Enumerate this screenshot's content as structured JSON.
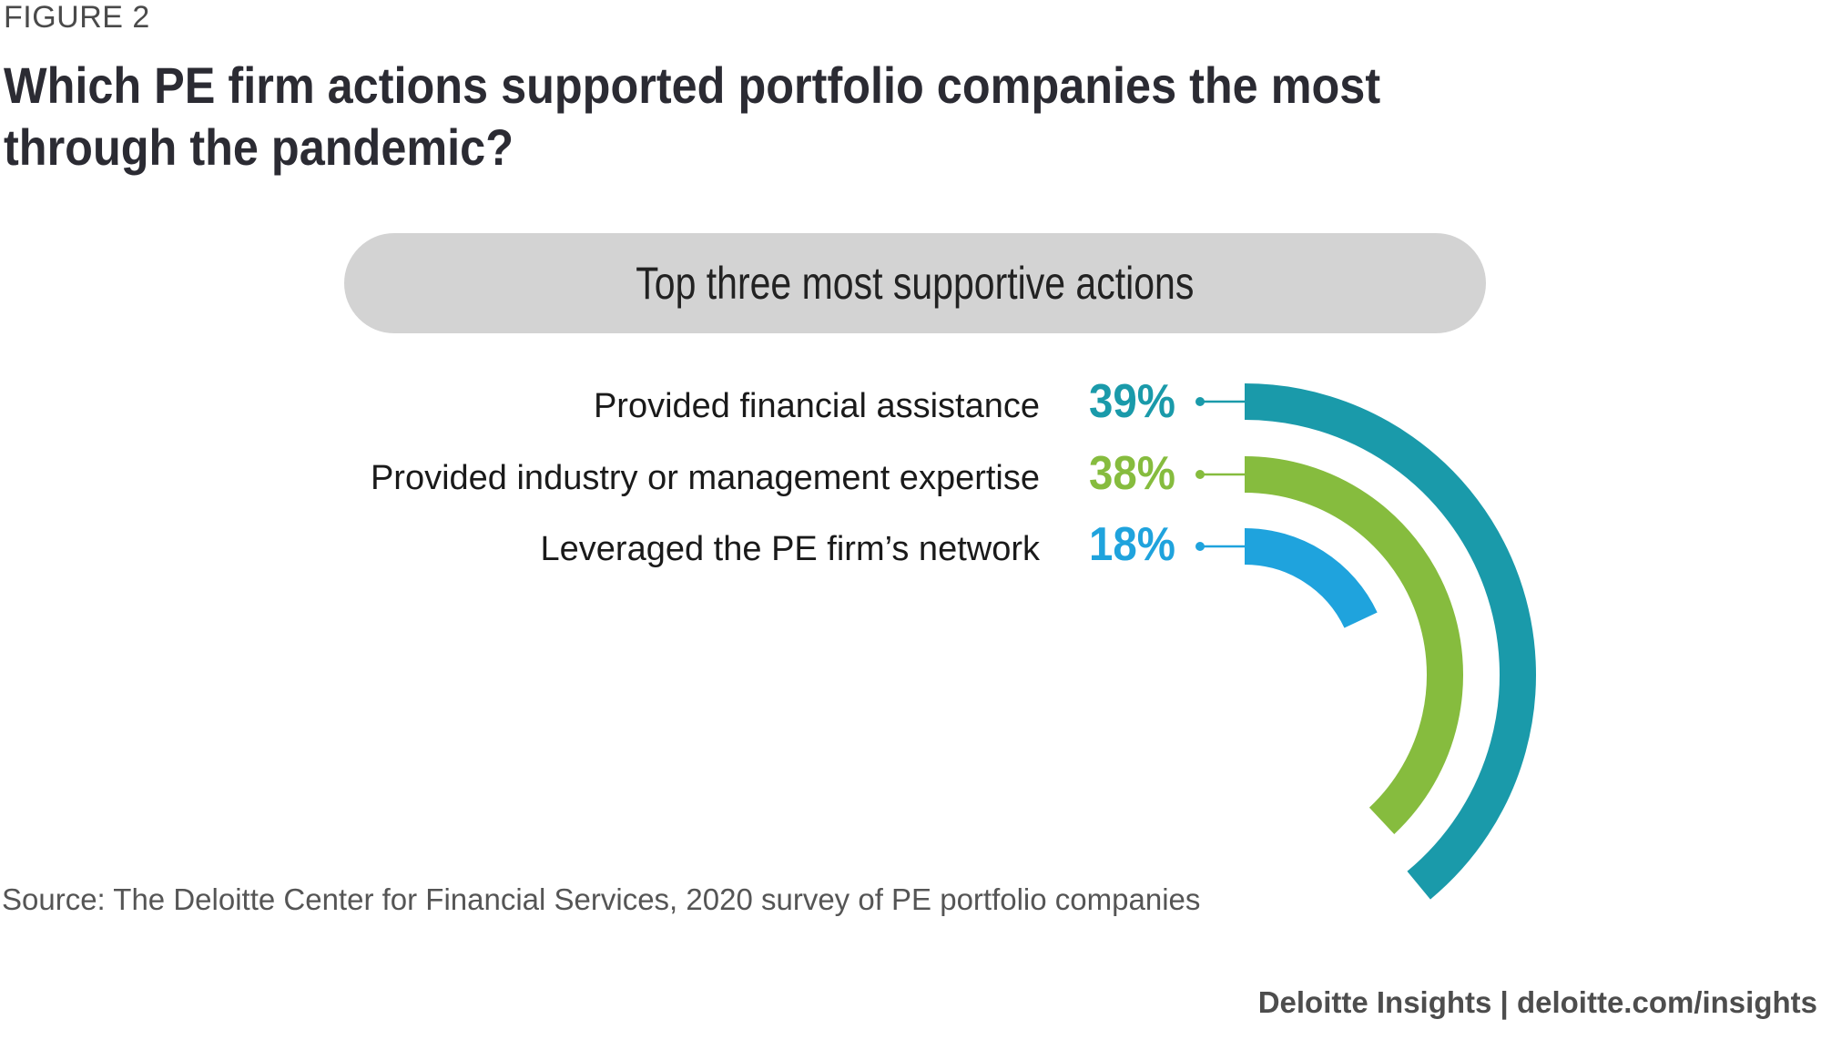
{
  "figure_label": "FIGURE 2",
  "title": "Which PE firm actions supported portfolio companies the most through the pandemic?",
  "subtitle": "Top three most supportive actions",
  "chart_data": {
    "type": "radial-bar",
    "title": "Which PE firm actions supported portfolio companies the most through the pandemic?",
    "subtitle": "Top three most supportive actions",
    "unit": "%",
    "max_value": 100,
    "series": [
      {
        "name": "Provided financial assistance",
        "value": 39,
        "label": "39%",
        "color": "#1a9aaa"
      },
      {
        "name": "Provided industry or management expertise",
        "value": 38,
        "label": "38%",
        "color": "#86bc3e"
      },
      {
        "name": "Leveraged the PE firm’s network",
        "value": 18,
        "label": "18%",
        "color": "#1fa3dd"
      }
    ]
  },
  "source": "Source: The Deloitte Center for Financial Services, 2020 survey of PE portfolio companies",
  "footer": "Deloitte Insights | deloitte.com/insights"
}
